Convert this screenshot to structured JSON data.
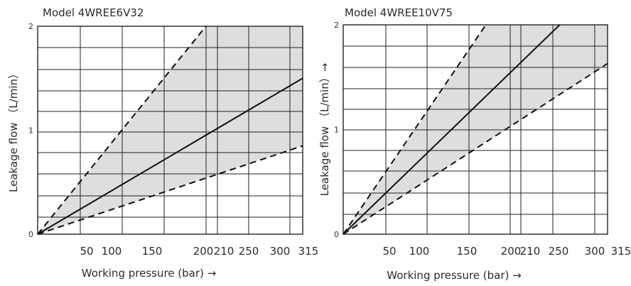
{
  "chart_data": [
    {
      "type": "line",
      "title": "Model 4WREE6V32",
      "xlabel": "Working pressure (bar) →",
      "ylabel": "Leakage flow （L/min）",
      "xlim": [
        0,
        315
      ],
      "ylim": [
        0,
        2
      ],
      "x_ticks": [
        50,
        100,
        150,
        200,
        210,
        250,
        300,
        315
      ],
      "y_ticks": [
        0,
        1,
        2
      ],
      "grid": true,
      "series": [
        {
          "style": "dashed",
          "x": [
            0,
            200
          ],
          "y": [
            0,
            2.0
          ]
        },
        {
          "style": "solid",
          "x": [
            0,
            315
          ],
          "y": [
            0,
            1.5
          ]
        },
        {
          "style": "dashed",
          "x": [
            0,
            315
          ],
          "y": [
            0,
            0.85
          ]
        }
      ],
      "band": {
        "fill": "#dedede",
        "between": [
          "upper-dashed",
          "lower-dashed"
        ]
      }
    },
    {
      "type": "line",
      "title": "Model 4WREE10V75",
      "xlabel": "Working pressure (bar) →",
      "ylabel": "Leakage flow （L/min）→",
      "xlim": [
        0,
        315
      ],
      "ylim": [
        0,
        2
      ],
      "x_ticks": [
        50,
        100,
        150,
        200,
        210,
        250,
        300,
        315
      ],
      "y_ticks": [
        0,
        1,
        2
      ],
      "grid": true,
      "series": [
        {
          "style": "dashed",
          "x": [
            0,
            170
          ],
          "y": [
            0,
            2.0
          ]
        },
        {
          "style": "solid",
          "x": [
            0,
            258
          ],
          "y": [
            0,
            2.0
          ]
        },
        {
          "style": "dashed",
          "x": [
            0,
            315
          ],
          "y": [
            0,
            1.63
          ]
        }
      ],
      "band": {
        "fill": "#dedede",
        "between": [
          "upper-dashed",
          "lower-dashed"
        ]
      }
    }
  ]
}
